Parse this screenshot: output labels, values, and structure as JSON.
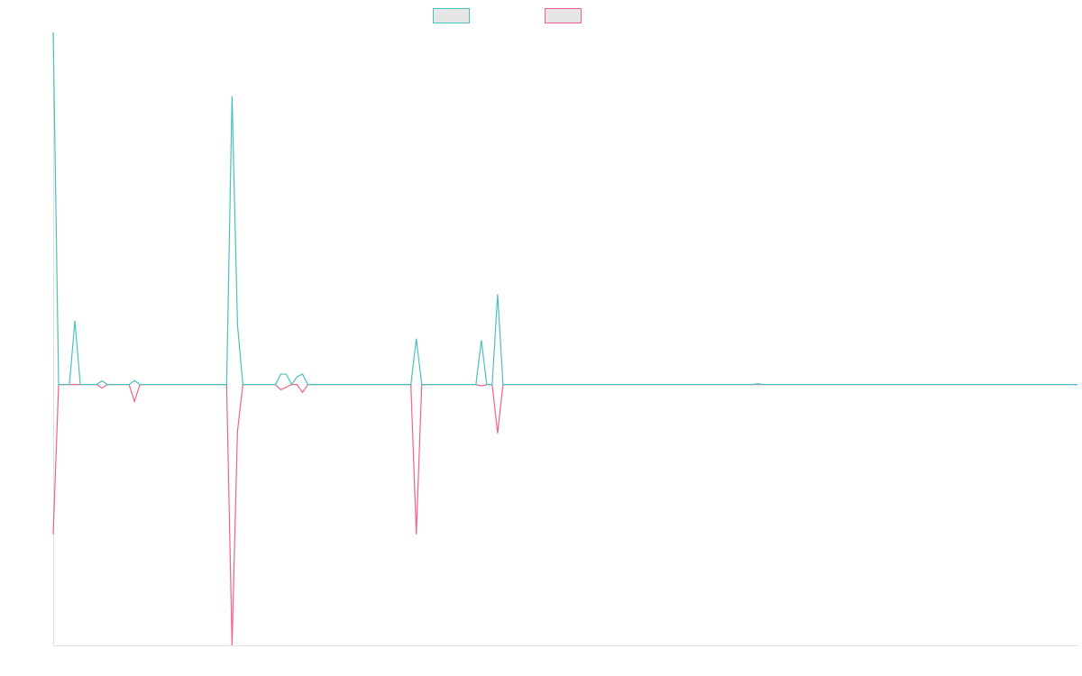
{
  "chart_data": {
    "type": "line",
    "ylim": [
      -100,
      135
    ],
    "series": [
      {
        "color": "#4bc0c0",
        "values": [
          135,
          0,
          0,
          0,
          24.5,
          0,
          0,
          0,
          0,
          1.4,
          0,
          0,
          0,
          0,
          0,
          1.5,
          0,
          0,
          0,
          0,
          0,
          0,
          0,
          0,
          0,
          0,
          0,
          0,
          0,
          0,
          0,
          0,
          0,
          110.6,
          23,
          0,
          0,
          0,
          0,
          0,
          0,
          0,
          4,
          4,
          0,
          3,
          4,
          0,
          0,
          0,
          0,
          0,
          0,
          0,
          0,
          0,
          0,
          0,
          0,
          0,
          0,
          0,
          0,
          0,
          0,
          0,
          0,
          17.6,
          0,
          0,
          0,
          0,
          0,
          0,
          0,
          0,
          0,
          0,
          0,
          17,
          0,
          0,
          34.6,
          0,
          0,
          0,
          0,
          0,
          0,
          0,
          0,
          0,
          0,
          0,
          0,
          0,
          0,
          0,
          0,
          0,
          0,
          0,
          0,
          0,
          0,
          0,
          0,
          0,
          0,
          0,
          0,
          0,
          0,
          0,
          0,
          0,
          0,
          0,
          0,
          0,
          0,
          0,
          0,
          0,
          0,
          0,
          0,
          0,
          0,
          0,
          0.3,
          0,
          0,
          0,
          0,
          0,
          0,
          0,
          0,
          0,
          0,
          0,
          0,
          0,
          0,
          0,
          0,
          0,
          0,
          0,
          0,
          0,
          0,
          0,
          0,
          0,
          0,
          0,
          0,
          0,
          0,
          0,
          0,
          0,
          0,
          0,
          0,
          0,
          0,
          0,
          0,
          0,
          0,
          0,
          0,
          0,
          0,
          0,
          0,
          0,
          0,
          0,
          0,
          0,
          0,
          0,
          0,
          0,
          0,
          0
        ]
      },
      {
        "color": "#f0628a",
        "values": [
          -57.4,
          0,
          0,
          0,
          0,
          0,
          0,
          0,
          0,
          -1.4,
          0,
          0,
          0,
          0,
          0,
          -6.5,
          0,
          0,
          0,
          0,
          0,
          0,
          0,
          0,
          0,
          0,
          0,
          0,
          0,
          0,
          0,
          0,
          0,
          -100,
          -18,
          0,
          0,
          0,
          0,
          0,
          0,
          0,
          -2,
          -1,
          0,
          0,
          -3,
          0,
          0,
          0,
          0,
          0,
          0,
          0,
          0,
          0,
          0,
          0,
          0,
          0,
          0,
          0,
          0,
          0,
          0,
          0,
          0,
          -57.4,
          0,
          0,
          0,
          0,
          0,
          0,
          0,
          0,
          0,
          0,
          0,
          -0.5,
          0,
          0,
          -18.7,
          0,
          0,
          0,
          0,
          0,
          0,
          0,
          0,
          0,
          0,
          0,
          0,
          0,
          0,
          0,
          0,
          0,
          0,
          0,
          0,
          0,
          0,
          0,
          0,
          0,
          0,
          0,
          0,
          0,
          0,
          0,
          0,
          0,
          0,
          0,
          0,
          0,
          0,
          0,
          0,
          0,
          0,
          0,
          0,
          0,
          0,
          0,
          0,
          0,
          0,
          0,
          0,
          0,
          0,
          0,
          0,
          0,
          0,
          0,
          0,
          0,
          0,
          0,
          0,
          0,
          0,
          0,
          0,
          0,
          0,
          0,
          0,
          0,
          0,
          0,
          0,
          0,
          0,
          0,
          0,
          0,
          0,
          0,
          0,
          0,
          0,
          0,
          0,
          0,
          0,
          0,
          0,
          0,
          0,
          0,
          0,
          0,
          0,
          0,
          0,
          0,
          0,
          0,
          0,
          0,
          0,
          0
        ]
      }
    ]
  }
}
